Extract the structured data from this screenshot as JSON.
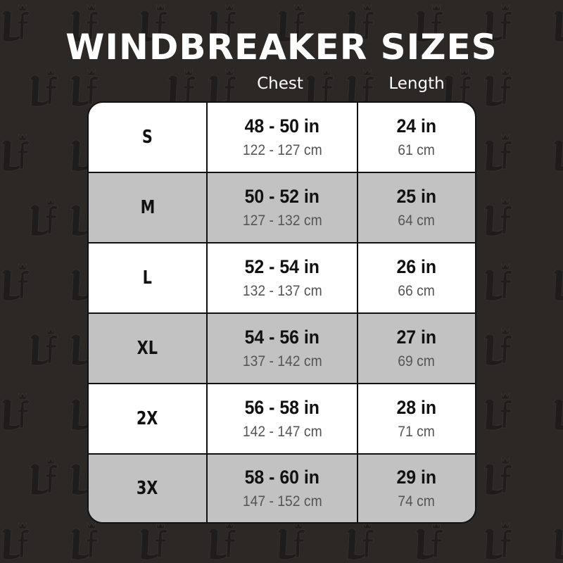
{
  "watermark": "Lf",
  "title": "WINDBREAKER SIZES",
  "columns": {
    "chest": "Chest",
    "length": "Length"
  },
  "colors": {
    "background": "#2b2826",
    "row_alt": "#c2c2c2",
    "row": "#ffffff"
  },
  "rows": [
    {
      "size": "S",
      "chest_in": "48 - 50 in",
      "chest_cm": "122 - 127 cm",
      "length_in": "24 in",
      "length_cm": "61 cm"
    },
    {
      "size": "M",
      "chest_in": "50 - 52 in",
      "chest_cm": "127 - 132 cm",
      "length_in": "25 in",
      "length_cm": "64 cm"
    },
    {
      "size": "L",
      "chest_in": "52 - 54 in",
      "chest_cm": "132 - 137 cm",
      "length_in": "26 in",
      "length_cm": "66 cm"
    },
    {
      "size": "XL",
      "chest_in": "54 - 56 in",
      "chest_cm": "137 - 142 cm",
      "length_in": "27 in",
      "length_cm": "69 cm"
    },
    {
      "size": "2X",
      "chest_in": "56 - 58 in",
      "chest_cm": "142 - 147 cm",
      "length_in": "28 in",
      "length_cm": "71 cm"
    },
    {
      "size": "3X",
      "chest_in": "58 - 60 in",
      "chest_cm": "147 - 152 cm",
      "length_in": "29 in",
      "length_cm": "74 cm"
    }
  ]
}
